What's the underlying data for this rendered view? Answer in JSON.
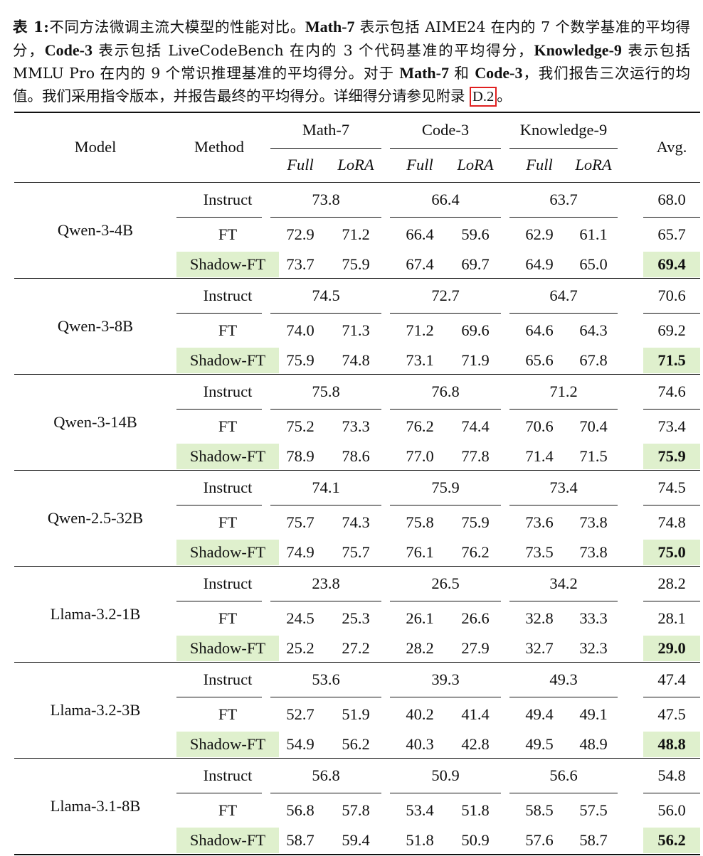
{
  "caption": {
    "label": "表 1:",
    "t1": "不同方法微调主流大模型的性能对比。",
    "b1": "Math-7",
    "t2": " 表示包括 AIME24 在内的 7 个数学基准的平均得分，",
    "b2": "Code-3",
    "t3": " 表示包括 LiveCodeBench 在内的 3 个代码基准的平均得分，",
    "b3": "Knowledge-9",
    "t4": " 表示包括 MMLU Pro 在内的 9 个常识推理基准的平均得分。对于 ",
    "b4": "Math-7",
    "t5": " 和 ",
    "b5": "Code-3",
    "t6": "，我们报告三次运行的均值。我们采用指令版本，并报告最终的平均得分。详细得分请参见附录 ",
    "ref": "D.2",
    "t7": "。"
  },
  "headers": {
    "model": "Model",
    "method": "Method",
    "math": "Math-7",
    "code": "Code-3",
    "knowledge": "Knowledge-9",
    "avg": "Avg.",
    "full": "Full",
    "lora": "LoRA"
  },
  "models": [
    {
      "name": "Qwen-3-4B",
      "instruct": {
        "label": "Instruct",
        "math": "73.8",
        "code": "66.4",
        "know": "63.7",
        "avg": "68.0"
      },
      "ft": {
        "label": "FT",
        "math_full": "72.9",
        "math_lora": "71.2",
        "code_full": "66.4",
        "code_lora": "59.6",
        "know_full": "62.9",
        "know_lora": "61.1",
        "avg": "65.7"
      },
      "shadow": {
        "label": "Shadow-FT",
        "math_full": "73.7",
        "math_lora": "75.9",
        "code_full": "67.4",
        "code_lora": "69.7",
        "know_full": "64.9",
        "know_lora": "65.0",
        "avg": "69.4"
      }
    },
    {
      "name": "Qwen-3-8B",
      "instruct": {
        "label": "Instruct",
        "math": "74.5",
        "code": "72.7",
        "know": "64.7",
        "avg": "70.6"
      },
      "ft": {
        "label": "FT",
        "math_full": "74.0",
        "math_lora": "71.3",
        "code_full": "71.2",
        "code_lora": "69.6",
        "know_full": "64.6",
        "know_lora": "64.3",
        "avg": "69.2"
      },
      "shadow": {
        "label": "Shadow-FT",
        "math_full": "75.9",
        "math_lora": "74.8",
        "code_full": "73.1",
        "code_lora": "71.9",
        "know_full": "65.6",
        "know_lora": "67.8",
        "avg": "71.5"
      }
    },
    {
      "name": "Qwen-3-14B",
      "instruct": {
        "label": "Instruct",
        "math": "75.8",
        "code": "76.8",
        "know": "71.2",
        "avg": "74.6"
      },
      "ft": {
        "label": "FT",
        "math_full": "75.2",
        "math_lora": "73.3",
        "code_full": "76.2",
        "code_lora": "74.4",
        "know_full": "70.6",
        "know_lora": "70.4",
        "avg": "73.4"
      },
      "shadow": {
        "label": "Shadow-FT",
        "math_full": "78.9",
        "math_lora": "78.6",
        "code_full": "77.0",
        "code_lora": "77.8",
        "know_full": "71.4",
        "know_lora": "71.5",
        "avg": "75.9"
      }
    },
    {
      "name": "Qwen-2.5-32B",
      "instruct": {
        "label": "Instruct",
        "math": "74.1",
        "code": "75.9",
        "know": "73.4",
        "avg": "74.5"
      },
      "ft": {
        "label": "FT",
        "math_full": "75.7",
        "math_lora": "74.3",
        "code_full": "75.8",
        "code_lora": "75.9",
        "know_full": "73.6",
        "know_lora": "73.8",
        "avg": "74.8"
      },
      "shadow": {
        "label": "Shadow-FT",
        "math_full": "74.9",
        "math_lora": "75.7",
        "code_full": "76.1",
        "code_lora": "76.2",
        "know_full": "73.5",
        "know_lora": "73.8",
        "avg": "75.0"
      }
    },
    {
      "name": "Llama-3.2-1B",
      "instruct": {
        "label": "Instruct",
        "math": "23.8",
        "code": "26.5",
        "know": "34.2",
        "avg": "28.2"
      },
      "ft": {
        "label": "FT",
        "math_full": "24.5",
        "math_lora": "25.3",
        "code_full": "26.1",
        "code_lora": "26.6",
        "know_full": "32.8",
        "know_lora": "33.3",
        "avg": "28.1"
      },
      "shadow": {
        "label": "Shadow-FT",
        "math_full": "25.2",
        "math_lora": "27.2",
        "code_full": "28.2",
        "code_lora": "27.9",
        "know_full": "32.7",
        "know_lora": "32.3",
        "avg": "29.0"
      }
    },
    {
      "name": "Llama-3.2-3B",
      "instruct": {
        "label": "Instruct",
        "math": "53.6",
        "code": "39.3",
        "know": "49.3",
        "avg": "47.4"
      },
      "ft": {
        "label": "FT",
        "math_full": "52.7",
        "math_lora": "51.9",
        "code_full": "40.2",
        "code_lora": "41.4",
        "know_full": "49.4",
        "know_lora": "49.1",
        "avg": "47.5"
      },
      "shadow": {
        "label": "Shadow-FT",
        "math_full": "54.9",
        "math_lora": "56.2",
        "code_full": "40.3",
        "code_lora": "42.8",
        "know_full": "49.5",
        "know_lora": "48.9",
        "avg": "48.8"
      }
    },
    {
      "name": "Llama-3.1-8B",
      "instruct": {
        "label": "Instruct",
        "math": "56.8",
        "code": "50.9",
        "know": "56.6",
        "avg": "54.8"
      },
      "ft": {
        "label": "FT",
        "math_full": "56.8",
        "math_lora": "57.8",
        "code_full": "53.4",
        "code_lora": "51.8",
        "know_full": "58.5",
        "know_lora": "57.5",
        "avg": "56.0"
      },
      "shadow": {
        "label": "Shadow-FT",
        "math_full": "58.7",
        "math_lora": "59.4",
        "code_full": "51.8",
        "code_lora": "50.9",
        "know_full": "57.6",
        "know_lora": "58.7",
        "avg": "56.2"
      }
    }
  ],
  "colors": {
    "highlight": "#dff0cd",
    "ref_box": "#e02020"
  }
}
